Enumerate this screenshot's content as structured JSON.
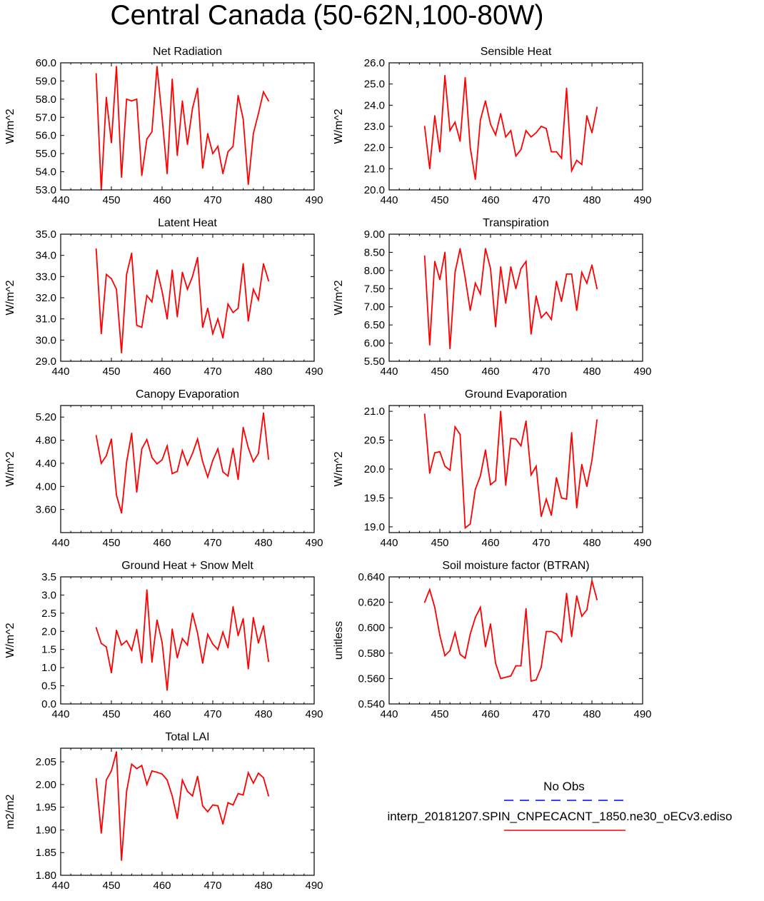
{
  "figure_title": "Central Canada (50-62N,100-80W)",
  "legend": {
    "obs_label": "No Obs",
    "obs_color": "#0000ff",
    "model_label": "interp_20181207.SPIN_CNPECACNT_1850.ne30_oECv3.ediso",
    "model_color": "#ff0000"
  },
  "chart_data": [
    {
      "type": "line",
      "title": "Net Radiation",
      "ylabel": "W/m^2",
      "xlim": [
        440,
        490
      ],
      "xticks": [
        440,
        450,
        460,
        470,
        480,
        490
      ],
      "ylim": [
        53.0,
        60.0
      ],
      "yticks": [
        53.0,
        54.0,
        55.0,
        56.0,
        57.0,
        58.0,
        59.0,
        60.0
      ],
      "ytick_labels": [
        "53.0",
        "54.0",
        "55.0",
        "56.0",
        "57.0",
        "58.0",
        "59.0",
        "60.0"
      ],
      "series": [
        {
          "name": "interp_20181207.SPIN_CNPECACNT_1850.ne30_oECv3.ediso",
          "x": [
            447,
            448,
            449,
            450,
            451,
            452,
            453,
            454,
            455,
            456,
            457,
            458,
            459,
            460,
            461,
            462,
            463,
            464,
            465,
            466,
            467,
            468,
            469,
            470,
            471,
            472,
            473,
            474,
            475,
            476,
            477,
            478,
            479,
            480,
            481
          ],
          "y": [
            59.4,
            53.0,
            58.1,
            55.6,
            59.8,
            53.7,
            58.0,
            57.9,
            58.0,
            53.8,
            55.8,
            56.2,
            59.8,
            57.0,
            53.9,
            59.1,
            54.9,
            57.9,
            55.5,
            57.5,
            58.6,
            54.2,
            56.1,
            55.0,
            55.4,
            53.9,
            55.1,
            55.4,
            58.2,
            56.9,
            53.3,
            56.1,
            57.2,
            58.4,
            57.9
          ]
        }
      ]
    },
    {
      "type": "line",
      "title": "Sensible Heat",
      "ylabel": "W/m^2",
      "xlim": [
        440,
        490
      ],
      "xticks": [
        440,
        450,
        460,
        470,
        480,
        490
      ],
      "ylim": [
        20.0,
        26.0
      ],
      "yticks": [
        20.0,
        21.0,
        22.0,
        23.0,
        24.0,
        25.0,
        26.0
      ],
      "ytick_labels": [
        "20.0",
        "21.0",
        "22.0",
        "23.0",
        "24.0",
        "25.0",
        "26.0"
      ],
      "series": [
        {
          "name": "interp_20181207.SPIN_CNPECACNT_1850.ne30_oECv3.ediso",
          "x": [
            447,
            448,
            449,
            450,
            451,
            452,
            453,
            454,
            455,
            456,
            457,
            458,
            459,
            460,
            461,
            462,
            463,
            464,
            465,
            466,
            467,
            468,
            469,
            470,
            471,
            472,
            473,
            474,
            475,
            476,
            477,
            478,
            479,
            480,
            481
          ],
          "y": [
            23.0,
            21.0,
            23.5,
            21.8,
            25.4,
            22.8,
            23.2,
            22.3,
            25.3,
            22.0,
            20.5,
            23.3,
            24.2,
            23.1,
            22.6,
            23.6,
            22.5,
            22.8,
            21.6,
            21.9,
            22.8,
            22.5,
            22.7,
            23.0,
            22.9,
            21.8,
            21.8,
            21.5,
            24.8,
            20.9,
            21.4,
            21.2,
            23.5,
            22.7,
            23.9
          ]
        }
      ]
    },
    {
      "type": "line",
      "title": "Latent Heat",
      "ylabel": "W/m^2",
      "xlim": [
        440,
        490
      ],
      "xticks": [
        440,
        450,
        460,
        470,
        480,
        490
      ],
      "ylim": [
        29.0,
        35.0
      ],
      "yticks": [
        29.0,
        30.0,
        31.0,
        32.0,
        33.0,
        34.0,
        35.0
      ],
      "ytick_labels": [
        "29.0",
        "30.0",
        "31.0",
        "32.0",
        "33.0",
        "34.0",
        "35.0"
      ],
      "series": [
        {
          "name": "interp_20181207.SPIN_CNPECACNT_1850.ne30_oECv3.ediso",
          "x": [
            447,
            448,
            449,
            450,
            451,
            452,
            453,
            454,
            455,
            456,
            457,
            458,
            459,
            460,
            461,
            462,
            463,
            464,
            465,
            466,
            467,
            468,
            469,
            470,
            471,
            472,
            473,
            474,
            475,
            476,
            477,
            478,
            479,
            480,
            481
          ],
          "y": [
            34.3,
            30.3,
            33.1,
            32.9,
            32.4,
            29.4,
            33.1,
            34.1,
            30.7,
            30.6,
            32.1,
            31.8,
            33.3,
            32.3,
            31.0,
            33.3,
            31.1,
            33.2,
            32.4,
            33.0,
            33.9,
            30.6,
            31.5,
            30.3,
            31.0,
            30.1,
            31.7,
            31.3,
            31.5,
            33.6,
            30.9,
            32.4,
            31.9,
            33.6,
            32.8
          ]
        }
      ]
    },
    {
      "type": "line",
      "title": "Transpiration",
      "ylabel": "W/m^2",
      "xlim": [
        440,
        490
      ],
      "xticks": [
        440,
        450,
        460,
        470,
        480,
        490
      ],
      "ylim": [
        5.5,
        9.0
      ],
      "yticks": [
        5.5,
        6.0,
        6.5,
        7.0,
        7.5,
        8.0,
        8.5,
        9.0
      ],
      "ytick_labels": [
        "5.50",
        "6.00",
        "6.50",
        "7.00",
        "7.50",
        "8.00",
        "8.50",
        "9.00"
      ],
      "series": [
        {
          "name": "interp_20181207.SPIN_CNPECACNT_1850.ne30_oECv3.ediso",
          "x": [
            447,
            448,
            449,
            450,
            451,
            452,
            453,
            454,
            455,
            456,
            457,
            458,
            459,
            460,
            461,
            462,
            463,
            464,
            465,
            466,
            467,
            468,
            469,
            470,
            471,
            472,
            473,
            474,
            475,
            476,
            477,
            478,
            479,
            480,
            481
          ],
          "y": [
            8.4,
            5.95,
            8.25,
            7.75,
            8.5,
            5.85,
            7.95,
            8.6,
            7.8,
            6.9,
            7.65,
            7.35,
            8.6,
            8.05,
            6.45,
            8.1,
            7.1,
            8.1,
            7.5,
            8.05,
            8.25,
            6.25,
            7.3,
            6.7,
            6.85,
            6.65,
            7.7,
            7.15,
            7.9,
            7.9,
            6.9,
            7.95,
            7.65,
            8.15,
            7.5
          ]
        }
      ]
    },
    {
      "type": "line",
      "title": "Canopy Evaporation",
      "ylabel": "W/m^2",
      "xlim": [
        440,
        490
      ],
      "xticks": [
        440,
        450,
        460,
        470,
        480,
        490
      ],
      "ylim": [
        3.2,
        5.4
      ],
      "yticks": [
        3.6,
        4.0,
        4.4,
        4.8,
        5.2
      ],
      "ytick_labels": [
        "3.60",
        "4.00",
        "4.40",
        "4.80",
        "5.20"
      ],
      "series": [
        {
          "name": "interp_20181207.SPIN_CNPECACNT_1850.ne30_oECv3.ediso",
          "x": [
            447,
            448,
            449,
            450,
            451,
            452,
            453,
            454,
            455,
            456,
            457,
            458,
            459,
            460,
            461,
            462,
            463,
            464,
            465,
            466,
            467,
            468,
            469,
            470,
            471,
            472,
            473,
            474,
            475,
            476,
            477,
            478,
            479,
            480,
            481
          ],
          "y": [
            4.88,
            4.4,
            4.53,
            4.82,
            3.85,
            3.54,
            4.42,
            4.92,
            3.9,
            4.65,
            4.81,
            4.5,
            4.39,
            4.46,
            4.7,
            4.22,
            4.26,
            4.62,
            4.37,
            4.57,
            4.82,
            4.43,
            4.16,
            4.45,
            4.65,
            4.25,
            4.18,
            4.66,
            4.12,
            5.02,
            4.67,
            4.43,
            4.57,
            5.27,
            4.47
          ]
        }
      ]
    },
    {
      "type": "line",
      "title": "Ground Evaporation",
      "ylabel": "W/m^2",
      "xlim": [
        440,
        490
      ],
      "xticks": [
        440,
        450,
        460,
        470,
        480,
        490
      ],
      "ylim": [
        18.9,
        21.1
      ],
      "yticks": [
        19.0,
        19.5,
        20.0,
        20.5,
        21.0
      ],
      "ytick_labels": [
        "19.0",
        "19.5",
        "20.0",
        "20.5",
        "21.0"
      ],
      "series": [
        {
          "name": "interp_20181207.SPIN_CNPECACNT_1850.ne30_oECv3.ediso",
          "x": [
            447,
            448,
            449,
            450,
            451,
            452,
            453,
            454,
            455,
            456,
            457,
            458,
            459,
            460,
            461,
            462,
            463,
            464,
            465,
            466,
            467,
            468,
            469,
            470,
            471,
            472,
            473,
            474,
            475,
            476,
            477,
            478,
            479,
            480,
            481
          ],
          "y": [
            20.95,
            19.93,
            20.28,
            20.3,
            20.05,
            19.98,
            20.73,
            20.6,
            18.98,
            19.05,
            19.65,
            19.88,
            20.33,
            19.73,
            19.8,
            21.0,
            19.72,
            20.53,
            20.52,
            20.4,
            20.83,
            19.9,
            20.05,
            19.18,
            19.48,
            19.2,
            19.85,
            19.5,
            19.48,
            20.63,
            19.33,
            20.08,
            19.7,
            20.15,
            20.85
          ]
        }
      ]
    },
    {
      "type": "line",
      "title": "Ground Heat + Snow Melt",
      "ylabel": "W/m^2",
      "xlim": [
        440,
        490
      ],
      "xticks": [
        440,
        450,
        460,
        470,
        480,
        490
      ],
      "ylim": [
        0.0,
        3.5
      ],
      "yticks": [
        0.0,
        0.5,
        1.0,
        1.5,
        2.0,
        2.5,
        3.0,
        3.5
      ],
      "ytick_labels": [
        "0.0",
        "0.5",
        "1.0",
        "1.5",
        "2.0",
        "2.5",
        "3.0",
        "3.5"
      ],
      "series": [
        {
          "name": "interp_20181207.SPIN_CNPECACNT_1850.ne30_oECv3.ediso",
          "x": [
            447,
            448,
            449,
            450,
            451,
            452,
            453,
            454,
            455,
            456,
            457,
            458,
            459,
            460,
            461,
            462,
            463,
            464,
            465,
            466,
            467,
            468,
            469,
            470,
            471,
            472,
            473,
            474,
            475,
            476,
            477,
            478,
            479,
            480,
            481
          ],
          "y": [
            2.1,
            1.67,
            1.57,
            0.86,
            2.03,
            1.62,
            1.74,
            1.48,
            2.05,
            1.13,
            3.14,
            1.15,
            2.31,
            1.7,
            0.38,
            2.06,
            1.27,
            1.8,
            1.62,
            2.5,
            1.95,
            1.12,
            1.92,
            1.65,
            1.5,
            1.98,
            1.55,
            2.68,
            1.88,
            2.35,
            0.97,
            2.38,
            1.68,
            2.15,
            1.17
          ]
        }
      ]
    },
    {
      "type": "line",
      "title": "Soil moisture factor (BTRAN)",
      "ylabel": "unitless",
      "xlim": [
        440,
        490
      ],
      "xticks": [
        440,
        450,
        460,
        470,
        480,
        490
      ],
      "ylim": [
        0.54,
        0.64
      ],
      "yticks": [
        0.54,
        0.56,
        0.58,
        0.6,
        0.62,
        0.64
      ],
      "ytick_labels": [
        "0.540",
        "0.560",
        "0.580",
        "0.600",
        "0.620",
        "0.640"
      ],
      "series": [
        {
          "name": "interp_20181207.SPIN_CNPECACNT_1850.ne30_oECv3.ediso",
          "x": [
            447,
            448,
            449,
            450,
            451,
            452,
            453,
            454,
            455,
            456,
            457,
            458,
            459,
            460,
            461,
            462,
            463,
            464,
            465,
            466,
            467,
            468,
            469,
            470,
            471,
            472,
            473,
            474,
            475,
            476,
            477,
            478,
            479,
            480,
            481
          ],
          "y": [
            0.62,
            0.63,
            0.616,
            0.594,
            0.578,
            0.582,
            0.596,
            0.579,
            0.576,
            0.595,
            0.608,
            0.616,
            0.585,
            0.603,
            0.572,
            0.56,
            0.561,
            0.562,
            0.57,
            0.57,
            0.615,
            0.558,
            0.559,
            0.569,
            0.597,
            0.597,
            0.595,
            0.589,
            0.627,
            0.593,
            0.625,
            0.609,
            0.614,
            0.637,
            0.622
          ]
        }
      ]
    },
    {
      "type": "line",
      "title": "Total LAI",
      "ylabel": "m2/m2",
      "xlim": [
        440,
        490
      ],
      "xticks": [
        440,
        450,
        460,
        470,
        480,
        490
      ],
      "ylim": [
        1.8,
        2.08
      ],
      "yticks": [
        1.8,
        1.85,
        1.9,
        1.95,
        2.0,
        2.05
      ],
      "ytick_labels": [
        "1.80",
        "1.85",
        "1.90",
        "1.95",
        "2.00",
        "2.05"
      ],
      "series": [
        {
          "name": "interp_20181207.SPIN_CNPECACNT_1850.ne30_oECv3.ediso",
          "x": [
            447,
            448,
            449,
            450,
            451,
            452,
            453,
            454,
            455,
            456,
            457,
            458,
            459,
            460,
            461,
            462,
            463,
            464,
            465,
            466,
            467,
            468,
            469,
            470,
            471,
            472,
            473,
            474,
            475,
            476,
            477,
            478,
            479,
            480,
            481
          ],
          "y": [
            2.013,
            1.893,
            2.01,
            2.03,
            2.072,
            1.833,
            1.985,
            2.045,
            2.035,
            2.042,
            2.0,
            2.03,
            2.027,
            2.023,
            2.01,
            1.975,
            1.925,
            2.01,
            1.985,
            1.975,
            2.018,
            1.953,
            1.94,
            1.955,
            1.953,
            1.913,
            1.96,
            1.955,
            1.98,
            1.977,
            2.026,
            2.003,
            2.025,
            2.015,
            1.975
          ]
        }
      ]
    }
  ]
}
